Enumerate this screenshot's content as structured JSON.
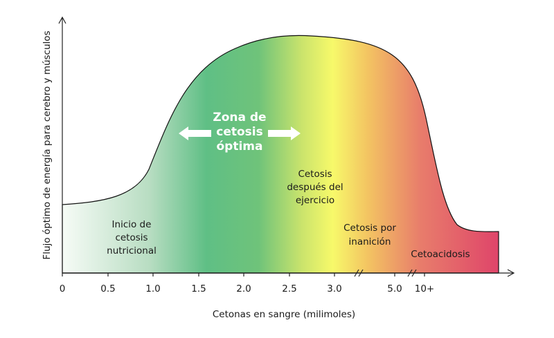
{
  "y_axis_label": "Flujo óptimo de energía para cerebro y músculos",
  "x_axis_label": "Cetonas en sangre (milimoles)",
  "x_ticks": [
    "0",
    "0.5",
    "1.0",
    "1.5",
    "2.0",
    "2.5",
    "3.0",
    "5.0",
    "10+"
  ],
  "zones": [
    {
      "lines": [
        "Zona de",
        "cetosis",
        "óptima"
      ]
    },
    {
      "lines": [
        "Inicio de",
        "cetosis",
        "nutricional"
      ]
    },
    {
      "lines": [
        "Cetosis",
        "después del",
        "ejercicio"
      ]
    },
    {
      "lines": [
        "Cetosis por",
        "inanición"
      ]
    },
    {
      "lines": [
        "Cetoacidosis"
      ]
    }
  ]
}
